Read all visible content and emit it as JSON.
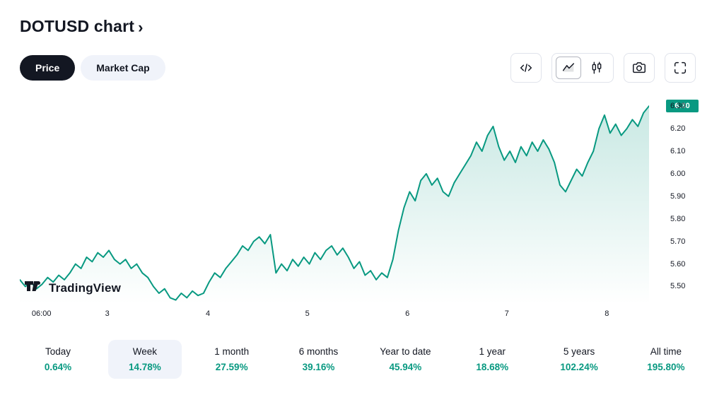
{
  "header": {
    "title": "DOTUSD chart",
    "chevron": "›"
  },
  "toggles": {
    "price_label": "Price",
    "market_cap_label": "Market Cap"
  },
  "toolbar": {
    "buttons": [
      "code-icon",
      "area-chart-icon",
      "candlestick-chart-icon",
      "camera-icon",
      "fullscreen-icon"
    ],
    "selected_chart_type": "area"
  },
  "watermark": {
    "text": "TradingView"
  },
  "chart_data": {
    "type": "area",
    "symbol": "DOTUSD",
    "line_color": "#089981",
    "fill_top": "rgba(8,153,129,0.22)",
    "fill_bottom": "rgba(8,153,129,0)",
    "last_price_badge": {
      "value": "6.30",
      "bg": "#089981"
    },
    "y_min": 5.42,
    "y_max": 6.36,
    "y_ticks": [
      "6.30",
      "6.20",
      "6.10",
      "6.00",
      "5.90",
      "5.80",
      "5.70",
      "5.60",
      "5.50"
    ],
    "x_ticks": [
      {
        "label": "06:00",
        "pos": 0.019
      },
      {
        "label": "3",
        "pos": 0.139
      },
      {
        "label": "4",
        "pos": 0.299
      },
      {
        "label": "5",
        "pos": 0.457
      },
      {
        "label": "6",
        "pos": 0.616
      },
      {
        "label": "7",
        "pos": 0.774
      },
      {
        "label": "8",
        "pos": 0.933
      }
    ],
    "values": [
      5.53,
      5.5,
      5.52,
      5.49,
      5.51,
      5.54,
      5.52,
      5.55,
      5.53,
      5.56,
      5.6,
      5.58,
      5.63,
      5.61,
      5.65,
      5.63,
      5.66,
      5.62,
      5.6,
      5.62,
      5.58,
      5.6,
      5.56,
      5.54,
      5.5,
      5.47,
      5.49,
      5.45,
      5.44,
      5.47,
      5.45,
      5.48,
      5.46,
      5.47,
      5.52,
      5.56,
      5.54,
      5.58,
      5.61,
      5.64,
      5.68,
      5.66,
      5.7,
      5.72,
      5.69,
      5.73,
      5.56,
      5.6,
      5.57,
      5.62,
      5.59,
      5.63,
      5.6,
      5.65,
      5.62,
      5.66,
      5.68,
      5.64,
      5.67,
      5.63,
      5.58,
      5.61,
      5.55,
      5.57,
      5.53,
      5.56,
      5.54,
      5.62,
      5.75,
      5.85,
      5.92,
      5.88,
      5.97,
      6.0,
      5.95,
      5.98,
      5.92,
      5.9,
      5.96,
      6.0,
      6.04,
      6.08,
      6.14,
      6.1,
      6.17,
      6.21,
      6.12,
      6.06,
      6.1,
      6.05,
      6.12,
      6.08,
      6.14,
      6.1,
      6.15,
      6.11,
      6.05,
      5.95,
      5.92,
      5.97,
      6.02,
      5.99,
      6.05,
      6.1,
      6.2,
      6.26,
      6.18,
      6.22,
      6.17,
      6.2,
      6.24,
      6.21,
      6.27,
      6.3
    ]
  },
  "periods": [
    {
      "label": "Today",
      "value": "0.64%"
    },
    {
      "label": "Week",
      "value": "14.78%",
      "selected": true
    },
    {
      "label": "1 month",
      "value": "27.59%"
    },
    {
      "label": "6 months",
      "value": "39.16%"
    },
    {
      "label": "Year to date",
      "value": "45.94%"
    },
    {
      "label": "1 year",
      "value": "18.68%"
    },
    {
      "label": "5 years",
      "value": "102.24%"
    },
    {
      "label": "All time",
      "value": "195.80%"
    }
  ]
}
